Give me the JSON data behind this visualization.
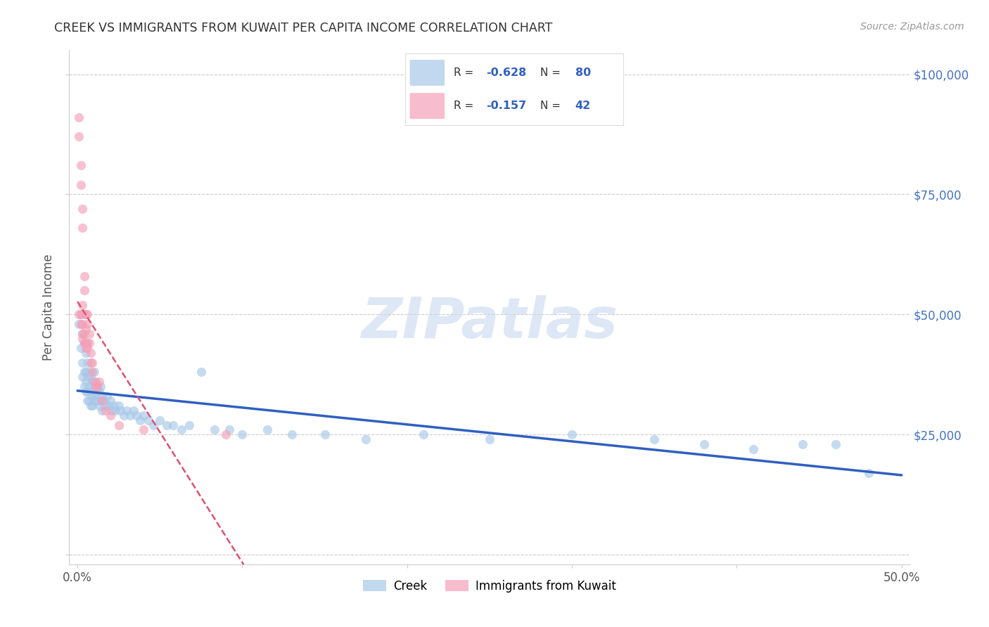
{
  "title": "CREEK VS IMMIGRANTS FROM KUWAIT PER CAPITA INCOME CORRELATION CHART",
  "source": "Source: ZipAtlas.com",
  "ylabel": "Per Capita Income",
  "xlabel_creek": "Creek",
  "xlabel_kuwait": "Immigrants from Kuwait",
  "xlim": [
    -0.005,
    0.505
  ],
  "ylim": [
    -2000,
    105000
  ],
  "yticks": [
    0,
    25000,
    50000,
    75000,
    100000
  ],
  "ytick_labels_right": [
    "",
    "$25,000",
    "$50,000",
    "$75,000",
    "$100,000"
  ],
  "xtick_positions": [
    0.0,
    0.1,
    0.2,
    0.3,
    0.4,
    0.5
  ],
  "xtick_labels": [
    "0.0%",
    "",
    "",
    "",
    "",
    "50.0%"
  ],
  "creek_R": -0.628,
  "creek_N": 80,
  "kuwait_R": -0.157,
  "kuwait_N": 42,
  "creek_color": "#a8c8e8",
  "kuwait_color": "#f4a0b8",
  "trendline_creek_color": "#3060c0",
  "trendline_kuwait_color": "#e05070",
  "watermark_color": "#c8d8f0",
  "background_color": "#ffffff",
  "grid_color": "#cccccc",
  "right_label_color": "#4472c4",
  "creek_x": [
    0.001,
    0.002,
    0.002,
    0.003,
    0.003,
    0.003,
    0.004,
    0.004,
    0.004,
    0.005,
    0.005,
    0.005,
    0.005,
    0.006,
    0.006,
    0.006,
    0.006,
    0.007,
    0.007,
    0.007,
    0.008,
    0.008,
    0.008,
    0.009,
    0.009,
    0.009,
    0.01,
    0.01,
    0.01,
    0.011,
    0.011,
    0.012,
    0.012,
    0.013,
    0.013,
    0.014,
    0.014,
    0.015,
    0.015,
    0.016,
    0.017,
    0.018,
    0.019,
    0.02,
    0.021,
    0.022,
    0.023,
    0.025,
    0.026,
    0.028,
    0.03,
    0.032,
    0.034,
    0.036,
    0.038,
    0.04,
    0.043,
    0.046,
    0.05,
    0.054,
    0.058,
    0.063,
    0.068,
    0.075,
    0.083,
    0.092,
    0.1,
    0.115,
    0.13,
    0.15,
    0.175,
    0.21,
    0.25,
    0.3,
    0.35,
    0.38,
    0.41,
    0.44,
    0.46,
    0.48
  ],
  "creek_y": [
    48000,
    50000,
    43000,
    46000,
    40000,
    37000,
    44000,
    38000,
    35000,
    42000,
    38000,
    36000,
    34000,
    40000,
    37000,
    34000,
    32000,
    38000,
    35000,
    32000,
    37000,
    34000,
    31000,
    36000,
    33000,
    31000,
    38000,
    35000,
    32000,
    36000,
    33000,
    35000,
    32000,
    34000,
    31000,
    35000,
    32000,
    33000,
    30000,
    32000,
    31000,
    33000,
    31000,
    32000,
    30000,
    31000,
    30000,
    31000,
    30000,
    29000,
    30000,
    29000,
    30000,
    29000,
    28000,
    29000,
    28000,
    27000,
    28000,
    27000,
    27000,
    26000,
    27000,
    38000,
    26000,
    26000,
    25000,
    26000,
    25000,
    25000,
    24000,
    25000,
    24000,
    25000,
    24000,
    23000,
    22000,
    23000,
    23000,
    17000
  ],
  "kuwait_x": [
    0.001,
    0.001,
    0.001,
    0.002,
    0.002,
    0.002,
    0.002,
    0.003,
    0.003,
    0.003,
    0.003,
    0.003,
    0.003,
    0.004,
    0.004,
    0.004,
    0.004,
    0.004,
    0.005,
    0.005,
    0.005,
    0.005,
    0.006,
    0.006,
    0.006,
    0.006,
    0.007,
    0.007,
    0.008,
    0.008,
    0.009,
    0.009,
    0.01,
    0.011,
    0.012,
    0.013,
    0.015,
    0.017,
    0.02,
    0.025,
    0.04,
    0.09
  ],
  "kuwait_y": [
    91000,
    87000,
    50000,
    81000,
    77000,
    50000,
    48000,
    72000,
    68000,
    52000,
    48000,
    46000,
    45000,
    58000,
    55000,
    50000,
    46000,
    44000,
    50000,
    47000,
    44000,
    43000,
    50000,
    48000,
    44000,
    43000,
    46000,
    44000,
    42000,
    40000,
    40000,
    38000,
    36000,
    35000,
    35000,
    36000,
    32000,
    30000,
    29000,
    27000,
    26000,
    25000
  ]
}
